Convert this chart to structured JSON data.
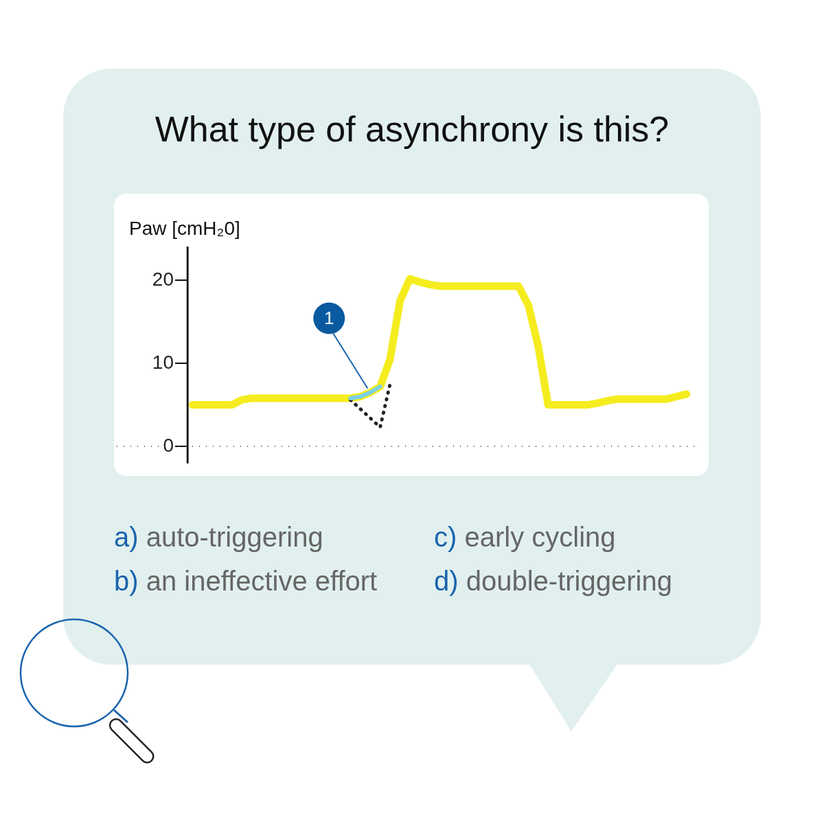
{
  "chart_data": {
    "type": "line",
    "title": "What type of asynchrony is this?",
    "ylabel": "Paw [cmH₂0]",
    "categories": [
      null,
      null,
      null,
      null,
      null,
      null,
      null,
      null,
      null,
      null,
      null,
      null,
      null,
      null,
      null,
      null,
      null,
      null,
      null,
      null,
      null,
      null,
      null,
      null,
      null,
      null,
      null,
      null,
      null,
      null,
      null,
      null,
      null,
      null,
      null,
      null,
      null,
      null,
      null,
      null,
      null,
      null,
      null,
      null,
      null,
      null,
      null,
      null,
      null,
      null,
      null
    ],
    "series": [
      {
        "color": "#f5ec1f",
        "values": [
          5.0,
          5.0,
          5.0,
          5.0,
          5.0,
          5.6,
          5.8,
          5.8,
          5.8,
          5.8,
          5.8,
          5.8,
          5.8,
          5.8,
          5.8,
          5.8,
          5.8,
          6.0,
          6.5,
          7.2,
          10.5,
          17.5,
          20.2,
          19.8,
          19.5,
          19.3,
          19.3,
          19.3,
          19.3,
          19.3,
          19.3,
          19.3,
          19.3,
          19.3,
          17.0,
          12.0,
          5.0,
          5.0,
          5.0,
          5.0,
          5.0,
          5.2,
          5.5,
          5.7,
          5.7,
          5.7,
          5.7,
          5.7,
          5.7,
          6.0,
          6.3
        ]
      },
      {
        "color": "#7dd0e4",
        "values": [
          null,
          null,
          null,
          null,
          null,
          null,
          null,
          null,
          null,
          null,
          null,
          null,
          null,
          null,
          null,
          null,
          5.8,
          6.0,
          6.5,
          7.2,
          null,
          null,
          null,
          null,
          null,
          null,
          null,
          null,
          null,
          null,
          null,
          null,
          null,
          null,
          null,
          null,
          null,
          null,
          null,
          null,
          null,
          null,
          null,
          null,
          null,
          null,
          null,
          null,
          null,
          null,
          null
        ]
      },
      {
        "color": "#222222",
        "line_style": "dotted",
        "values": [
          null,
          null,
          null,
          null,
          null,
          null,
          null,
          null,
          null,
          null,
          null,
          null,
          null,
          null,
          null,
          null,
          5.6,
          4.5,
          3.4,
          2.3,
          7.5,
          null,
          null,
          null,
          null,
          null,
          null,
          null,
          null,
          null,
          null,
          null,
          null,
          null,
          null,
          null,
          null,
          null,
          null,
          null,
          null,
          null,
          null,
          null,
          null,
          null,
          null,
          null,
          null,
          null,
          null
        ]
      }
    ],
    "ylim": [
      -2,
      24
    ],
    "yticks": [
      0,
      10,
      20
    ],
    "tick_labels": "y",
    "grid": false,
    "legend": false,
    "marker": "none",
    "ref_lines": [
      {
        "axis": "y",
        "value": 0,
        "color": "#555555",
        "line_style": "dotted"
      }
    ],
    "annotations": [
      "1",
      "a) auto-triggering",
      "b) an ineffective effort",
      "c) early cycling",
      "d) double-triggering"
    ]
  }
}
